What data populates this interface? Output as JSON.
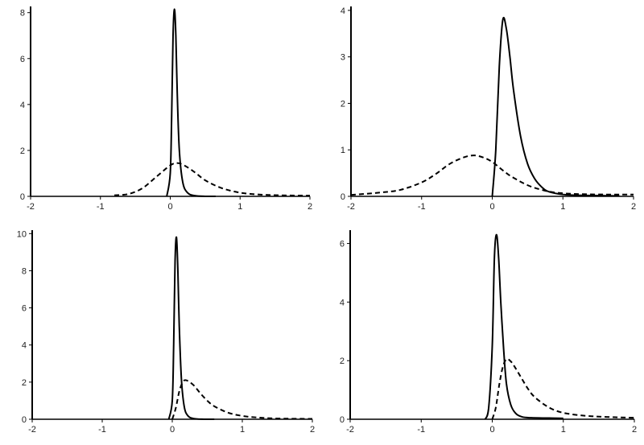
{
  "chart_data": [
    {
      "type": "line",
      "title": "",
      "xlabel": "",
      "ylabel": "",
      "xlim": [
        -2,
        2
      ],
      "ylim": [
        0,
        8.2
      ],
      "xticks": [
        -2,
        -1,
        0,
        1,
        2
      ],
      "xtick_labels": [
        "-2",
        "-1",
        "0",
        "1",
        "2"
      ],
      "yticks": [
        0,
        2,
        4,
        6,
        8
      ],
      "ytick_labels": [
        "0",
        "2",
        "4",
        "6",
        "8"
      ],
      "grid": false,
      "series": [
        {
          "style": "solid",
          "color": "#000000",
          "x": [
            -0.05,
            0.0,
            0.02,
            0.04,
            0.06,
            0.08,
            0.1,
            0.13,
            0.18,
            0.25,
            0.35,
            0.5,
            0.65
          ],
          "values": [
            0,
            1.0,
            3.5,
            7.0,
            8.15,
            7.0,
            4.5,
            2.0,
            0.6,
            0.15,
            0.03,
            0.0,
            0.0
          ]
        },
        {
          "style": "dashed",
          "color": "#000000",
          "x": [
            -0.8,
            -0.6,
            -0.4,
            -0.2,
            0.0,
            0.1,
            0.2,
            0.35,
            0.5,
            0.7,
            0.9,
            1.1,
            1.4,
            1.7,
            2.0
          ],
          "values": [
            0.05,
            0.1,
            0.35,
            0.85,
            1.35,
            1.45,
            1.35,
            1.05,
            0.7,
            0.4,
            0.22,
            0.12,
            0.06,
            0.04,
            0.03
          ]
        }
      ]
    },
    {
      "type": "line",
      "title": "",
      "xlabel": "",
      "ylabel": "",
      "xlim": [
        -2,
        2
      ],
      "ylim": [
        0,
        4.05
      ],
      "xticks": [
        -2,
        -1,
        0,
        1,
        2
      ],
      "xtick_labels": [
        "-2",
        "-1",
        "0",
        "1",
        "2"
      ],
      "yticks": [
        0,
        1,
        2,
        3,
        4
      ],
      "ytick_labels": [
        "0",
        "1",
        "2",
        "3",
        "4"
      ],
      "grid": false,
      "series": [
        {
          "style": "solid",
          "color": "#000000",
          "x": [
            0.0,
            0.05,
            0.1,
            0.15,
            0.2,
            0.25,
            0.3,
            0.4,
            0.5,
            0.6,
            0.7,
            0.8,
            1.0,
            1.3,
            1.8
          ],
          "values": [
            0.0,
            1.0,
            2.8,
            3.8,
            3.6,
            3.0,
            2.3,
            1.3,
            0.7,
            0.38,
            0.2,
            0.1,
            0.04,
            0.02,
            0.01
          ]
        },
        {
          "style": "dashed",
          "color": "#000000",
          "x": [
            -2.0,
            -1.6,
            -1.3,
            -1.0,
            -0.8,
            -0.6,
            -0.4,
            -0.25,
            -0.1,
            0.0,
            0.1,
            0.2,
            0.3,
            0.5,
            0.7,
            0.9,
            1.2,
            1.6,
            2.0
          ],
          "values": [
            0.03,
            0.08,
            0.14,
            0.3,
            0.48,
            0.7,
            0.84,
            0.88,
            0.82,
            0.74,
            0.62,
            0.5,
            0.4,
            0.24,
            0.14,
            0.08,
            0.05,
            0.04,
            0.04
          ]
        }
      ]
    },
    {
      "type": "line",
      "title": "",
      "xlabel": "",
      "ylabel": "",
      "xlim": [
        -2,
        2
      ],
      "ylim": [
        0,
        10.1
      ],
      "xticks": [
        -2,
        -1,
        0,
        1,
        2
      ],
      "xtick_labels": [
        "-2",
        "-1",
        "0",
        "1",
        "2"
      ],
      "yticks": [
        0,
        2,
        4,
        6,
        8,
        10
      ],
      "ytick_labels": [
        "0",
        "2",
        "4",
        "6",
        "8",
        "10"
      ],
      "grid": false,
      "series": [
        {
          "style": "solid",
          "color": "#000000",
          "x": [
            -0.05,
            0.0,
            0.02,
            0.04,
            0.06,
            0.08,
            0.1,
            0.13,
            0.17,
            0.22,
            0.3,
            0.45,
            0.6
          ],
          "values": [
            0,
            1.0,
            4.0,
            8.5,
            9.8,
            8.0,
            5.0,
            2.2,
            0.7,
            0.2,
            0.04,
            0.0,
            0.0
          ]
        },
        {
          "style": "dashed",
          "color": "#000000",
          "x": [
            0.0,
            0.05,
            0.1,
            0.15,
            0.2,
            0.3,
            0.4,
            0.5,
            0.6,
            0.8,
            1.0,
            1.2,
            1.5,
            2.0
          ],
          "values": [
            0.0,
            0.6,
            1.5,
            2.0,
            2.1,
            1.85,
            1.4,
            1.0,
            0.7,
            0.35,
            0.18,
            0.1,
            0.04,
            0.02
          ]
        }
      ]
    },
    {
      "type": "line",
      "title": "",
      "xlabel": "",
      "ylabel": "",
      "xlim": [
        -2,
        2
      ],
      "ylim": [
        0,
        6.4
      ],
      "xticks": [
        -2,
        -1,
        0,
        1,
        2
      ],
      "xtick_labels": [
        "-2",
        "-1",
        "0",
        "1",
        "2"
      ],
      "yticks": [
        0,
        2,
        4,
        6
      ],
      "ytick_labels": [
        "0",
        "2",
        "4",
        "6"
      ],
      "grid": false,
      "series": [
        {
          "style": "solid",
          "color": "#000000",
          "x": [
            -0.1,
            -0.05,
            0.0,
            0.03,
            0.06,
            0.09,
            0.12,
            0.16,
            0.2,
            0.26,
            0.33,
            0.42,
            0.55,
            0.8,
            1.0
          ],
          "values": [
            0.0,
            0.4,
            2.5,
            5.5,
            6.3,
            5.5,
            4.0,
            2.4,
            1.2,
            0.5,
            0.2,
            0.08,
            0.05,
            0.04,
            0.03
          ]
        },
        {
          "style": "dashed",
          "color": "#000000",
          "x": [
            0.0,
            0.05,
            0.1,
            0.15,
            0.2,
            0.25,
            0.3,
            0.4,
            0.5,
            0.6,
            0.8,
            1.0,
            1.3,
            1.6,
            2.0
          ],
          "values": [
            0.0,
            0.4,
            1.2,
            1.8,
            2.05,
            2.0,
            1.85,
            1.45,
            1.05,
            0.75,
            0.4,
            0.22,
            0.12,
            0.08,
            0.05
          ]
        }
      ]
    }
  ]
}
